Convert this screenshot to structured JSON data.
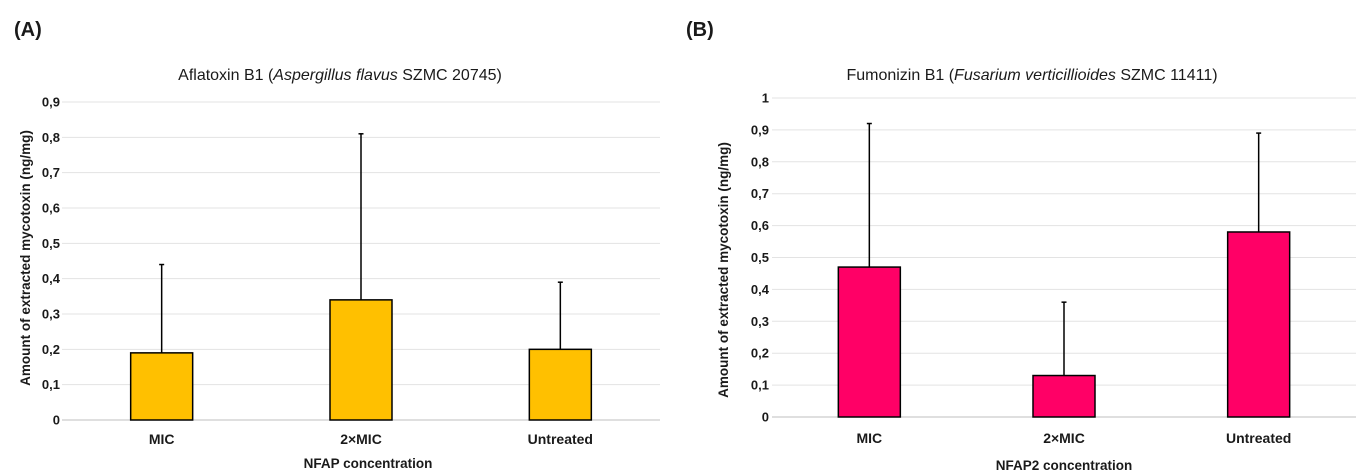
{
  "chart_data": [
    {
      "type": "bar",
      "panel_label": "(A)",
      "title_parts": [
        {
          "text": "Aflatoxin B1 (",
          "italic": false
        },
        {
          "text": "Aspergillus flavus",
          "italic": true
        },
        {
          "text": " SZMC 20745)",
          "italic": false
        }
      ],
      "categories": [
        "MIC",
        "2×MIC",
        "Untreated"
      ],
      "values": [
        0.19,
        0.34,
        0.2
      ],
      "error_plus": [
        0.25,
        0.47,
        0.19
      ],
      "ylim": [
        0,
        0.9
      ],
      "yticks": [
        "0",
        "0,1",
        "0,2",
        "0,3",
        "0,4",
        "0,5",
        "0,6",
        "0,7",
        "0,8",
        "0,9"
      ],
      "xlabel": "NFAP concentration",
      "ylabel": "Amount of extracted mycotoxin (ng/mg)",
      "bar_color": "#ffc000",
      "grid": true
    },
    {
      "type": "bar",
      "panel_label": "(B)",
      "title_parts": [
        {
          "text": "Fumonizin B1 (",
          "italic": false
        },
        {
          "text": "Fusarium verticillioides",
          "italic": true
        },
        {
          "text": " SZMC 11411)",
          "italic": false
        }
      ],
      "categories": [
        "MIC",
        "2×MIC",
        "Untreated"
      ],
      "values": [
        0.47,
        0.13,
        0.58
      ],
      "error_plus": [
        0.45,
        0.23,
        0.31
      ],
      "ylim": [
        0,
        1
      ],
      "yticks": [
        "0",
        "0,1",
        "0,2",
        "0,3",
        "0,4",
        "0,5",
        "0,6",
        "0,7",
        "0,8",
        "0,9",
        "1"
      ],
      "xlabel": "NFAP2 concentration",
      "ylabel": "Amount of extracted mycotoxin (ng/mg)",
      "bar_color": "#ff0066",
      "grid": true
    }
  ]
}
